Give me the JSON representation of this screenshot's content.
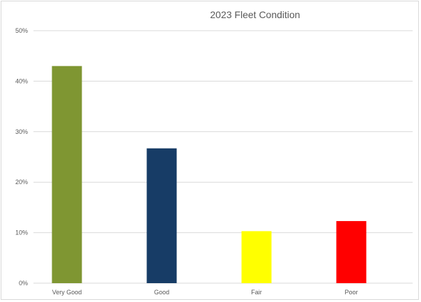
{
  "chart_data": {
    "type": "bar",
    "title": "2023 Fleet Condition",
    "xlabel": "",
    "ylabel": "",
    "categories": [
      "Very Good",
      "Good",
      "Fair",
      "Poor"
    ],
    "values": [
      43,
      26.7,
      10.3,
      12.3
    ],
    "colors": [
      "#7f9632",
      "#173c66",
      "#ffff00",
      "#ff0000"
    ],
    "ylim": [
      0,
      50
    ],
    "yticks": [
      "0%",
      "10%",
      "20%",
      "30%",
      "40%",
      "50%"
    ],
    "grid": true,
    "legend": "none"
  }
}
